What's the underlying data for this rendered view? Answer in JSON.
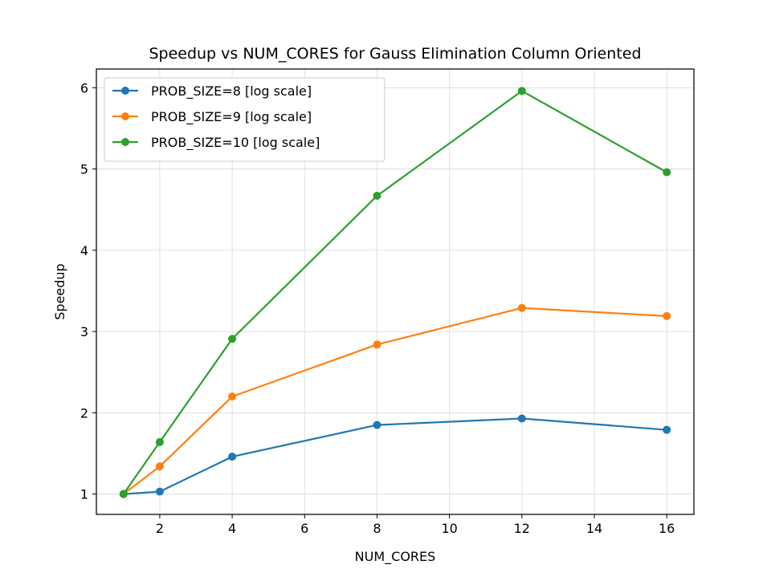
{
  "chart_data": {
    "type": "line",
    "title": "Speedup vs NUM_CORES for Gauss Elimination Column Oriented",
    "xlabel": "NUM_CORES",
    "ylabel": "Speedup",
    "xlim": [
      0.25,
      16.75
    ],
    "ylim": [
      0.75,
      6.23
    ],
    "xticks": [
      2,
      4,
      6,
      8,
      10,
      12,
      14,
      16
    ],
    "yticks": [
      1,
      2,
      3,
      4,
      5,
      6
    ],
    "grid": true,
    "legend_position": "upper-left",
    "x": [
      1,
      2,
      4,
      8,
      12,
      16
    ],
    "series": [
      {
        "name": "PROB_SIZE=8 [log scale]",
        "color": "#1f77b4",
        "values": [
          1.0,
          1.03,
          1.46,
          1.85,
          1.93,
          1.79
        ]
      },
      {
        "name": "PROB_SIZE=9 [log scale]",
        "color": "#ff7f0e",
        "values": [
          1.0,
          1.34,
          2.2,
          2.84,
          3.29,
          3.19
        ]
      },
      {
        "name": "PROB_SIZE=10 [log scale]",
        "color": "#2ca02c",
        "values": [
          1.0,
          1.64,
          2.91,
          4.67,
          5.96,
          4.96
        ]
      }
    ]
  }
}
